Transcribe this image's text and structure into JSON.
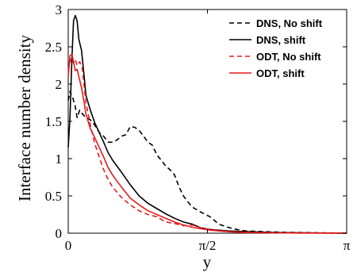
{
  "chart_data": {
    "type": "line",
    "xlabel": "y",
    "ylabel": "Interface number density",
    "xlim": [
      0,
      3.14159
    ],
    "ylim": [
      0,
      3
    ],
    "x_ticks": [
      {
        "value": 0,
        "label": "0"
      },
      {
        "value": 1.5708,
        "label": "π/2"
      },
      {
        "value": 3.14159,
        "label": "π"
      }
    ],
    "y_ticks": [
      {
        "value": 0,
        "label": "0"
      },
      {
        "value": 0.5,
        "label": "0.5"
      },
      {
        "value": 1,
        "label": "1"
      },
      {
        "value": 1.5,
        "label": "1.5"
      },
      {
        "value": 2,
        "label": "2"
      },
      {
        "value": 2.5,
        "label": "2.5"
      },
      {
        "value": 3,
        "label": "3"
      }
    ],
    "grid": false,
    "legend_position": "top-right",
    "series": [
      {
        "name": "DNS, No shift",
        "color": "#000000",
        "dashed": true,
        "x": [
          0,
          0.02,
          0.05,
          0.08,
          0.1,
          0.13,
          0.16,
          0.2,
          0.25,
          0.3,
          0.35,
          0.4,
          0.45,
          0.5,
          0.55,
          0.6,
          0.65,
          0.7,
          0.75,
          0.8,
          0.85,
          0.9,
          0.95,
          1.0,
          1.05,
          1.1,
          1.15,
          1.2,
          1.25,
          1.3,
          1.35,
          1.4,
          1.5,
          1.6,
          1.7,
          1.8,
          1.9,
          2.0,
          2.2,
          2.5,
          2.8,
          3.14
        ],
        "y": [
          1.78,
          1.9,
          1.82,
          1.7,
          1.55,
          1.65,
          1.6,
          1.55,
          1.52,
          1.45,
          1.35,
          1.3,
          1.22,
          1.22,
          1.25,
          1.3,
          1.32,
          1.43,
          1.42,
          1.38,
          1.3,
          1.22,
          1.18,
          1.05,
          0.98,
          0.9,
          0.85,
          0.78,
          0.62,
          0.5,
          0.42,
          0.35,
          0.28,
          0.22,
          0.12,
          0.08,
          0.05,
          0.03,
          0.02,
          0.01,
          0.005,
          0.0
        ]
      },
      {
        "name": "DNS, shift",
        "color": "#000000",
        "dashed": false,
        "x": [
          0,
          0.02,
          0.04,
          0.06,
          0.08,
          0.1,
          0.12,
          0.15,
          0.18,
          0.2,
          0.25,
          0.3,
          0.35,
          0.4,
          0.45,
          0.5,
          0.55,
          0.6,
          0.7,
          0.8,
          0.9,
          1.0,
          1.1,
          1.2,
          1.3,
          1.4,
          1.5,
          1.6,
          1.8,
          2.0,
          2.3,
          2.6,
          3.14
        ],
        "y": [
          1.15,
          1.55,
          2.3,
          2.85,
          2.92,
          2.85,
          2.6,
          2.45,
          2.1,
          1.85,
          1.65,
          1.48,
          1.35,
          1.22,
          1.08,
          0.98,
          0.9,
          0.82,
          0.65,
          0.5,
          0.4,
          0.33,
          0.26,
          0.2,
          0.15,
          0.12,
          0.07,
          0.05,
          0.03,
          0.02,
          0.01,
          0.005,
          0.0
        ]
      },
      {
        "name": "ODT, No shift",
        "color": "#e8191c",
        "dashed": true,
        "x": [
          0,
          0.02,
          0.04,
          0.06,
          0.08,
          0.1,
          0.13,
          0.16,
          0.2,
          0.25,
          0.3,
          0.35,
          0.4,
          0.45,
          0.5,
          0.55,
          0.6,
          0.7,
          0.8,
          0.9,
          1.0,
          1.1,
          1.2,
          1.3,
          1.4,
          1.5,
          1.6,
          1.8,
          2.0,
          2.3,
          2.6,
          3.14
        ],
        "y": [
          2.18,
          2.3,
          2.35,
          2.28,
          2.33,
          2.25,
          2.3,
          2.2,
          1.75,
          1.45,
          1.2,
          1.02,
          0.85,
          0.72,
          0.62,
          0.55,
          0.48,
          0.38,
          0.3,
          0.25,
          0.22,
          0.15,
          0.13,
          0.1,
          0.11,
          0.07,
          0.05,
          0.02,
          0.01,
          0.005,
          0.002,
          0.0
        ]
      },
      {
        "name": "ODT, shift",
        "color": "#e8191c",
        "dashed": false,
        "x": [
          0,
          0.02,
          0.04,
          0.06,
          0.08,
          0.1,
          0.12,
          0.15,
          0.18,
          0.2,
          0.25,
          0.3,
          0.35,
          0.4,
          0.45,
          0.5,
          0.55,
          0.6,
          0.7,
          0.8,
          0.9,
          1.0,
          1.1,
          1.2,
          1.3,
          1.4,
          1.5,
          1.6,
          1.8,
          2.0,
          2.3,
          2.6,
          3.14
        ],
        "y": [
          2.1,
          2.38,
          2.4,
          2.3,
          2.18,
          2.2,
          2.1,
          1.95,
          1.75,
          1.6,
          1.4,
          1.28,
          1.15,
          1.02,
          0.88,
          0.78,
          0.7,
          0.62,
          0.47,
          0.38,
          0.3,
          0.25,
          0.2,
          0.15,
          0.11,
          0.08,
          0.06,
          0.04,
          0.02,
          0.01,
          0.005,
          0.002,
          0.0
        ]
      }
    ]
  }
}
